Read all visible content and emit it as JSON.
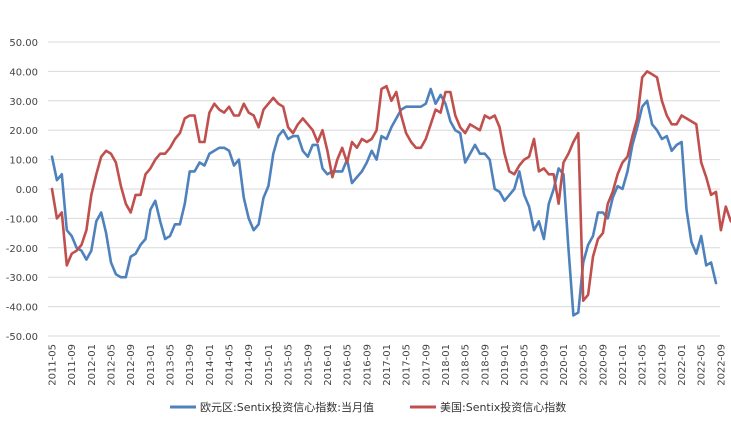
{
  "chart_data": {
    "type": "line",
    "title": "",
    "xlabel": "",
    "ylabel": "",
    "ylim": [
      -50,
      50
    ],
    "yticks": [
      "50.00",
      "40.00",
      "30.00",
      "20.00",
      "10.00",
      "0.00",
      "-10.00",
      "-20.00",
      "-30.00",
      "-40.00",
      "-50.00"
    ],
    "x_start": "2011-05",
    "x_end": "2022-09",
    "xtick_labels": [
      "2011-05",
      "2011-09",
      "2012-01",
      "2012-05",
      "2012-09",
      "2013-01",
      "2013-05",
      "2013-09",
      "2014-01",
      "2014-05",
      "2014-09",
      "2015-01",
      "2015-05",
      "2015-09",
      "2016-01",
      "2016-05",
      "2016-09",
      "2017-01",
      "2017-05",
      "2017-09",
      "2018-01",
      "2018-05",
      "2018-09",
      "2019-01",
      "2019-05",
      "2019-09",
      "2020-01",
      "2020-05",
      "2020-09",
      "2021-01",
      "2021-05",
      "2021-09",
      "2022-01",
      "2022-05",
      "2022-09"
    ],
    "grid": true,
    "legend_position": "bottom",
    "series": [
      {
        "name": "欧元区:Sentix投资信心指数:当月值",
        "color": "#4f81bd",
        "values": [
          11,
          3,
          5,
          -14,
          -16,
          -20,
          -21,
          -24,
          -21,
          -11,
          -8,
          -15,
          -25,
          -29,
          -30,
          -30,
          -23,
          -22,
          -19,
          -17,
          -7,
          -4,
          -11,
          -17,
          -16,
          -12,
          -12,
          -5,
          6,
          6,
          9,
          8,
          12,
          13,
          14,
          14,
          13,
          8,
          10,
          -3,
          -10,
          -14,
          -12,
          -3,
          1,
          12,
          18,
          20,
          17,
          18,
          18,
          13,
          11,
          15,
          15,
          7,
          5,
          6,
          6,
          6,
          10,
          2,
          4,
          6,
          9,
          13,
          10,
          18,
          17,
          21,
          24,
          27,
          28,
          28,
          28,
          28,
          29,
          34,
          29,
          32,
          29,
          23,
          20,
          19,
          9,
          12,
          15,
          12,
          12,
          10,
          0,
          -1,
          -4,
          -2,
          0,
          6,
          -2,
          -6,
          -14,
          -11,
          -17,
          -5,
          0,
          7,
          5,
          -20,
          -43,
          -42,
          -25,
          -19,
          -16,
          -8,
          -8,
          -10,
          -3,
          1,
          0,
          6,
          15,
          21,
          28,
          30,
          22,
          20,
          17,
          18,
          13,
          15,
          16,
          -7,
          -18,
          -22,
          -16,
          -26,
          -25,
          -32
        ]
      },
      {
        "name": "美国:Sentix投资信心指数",
        "color": "#c0504d",
        "values": [
          0,
          -10,
          -8,
          -26,
          -22,
          -21,
          -19,
          -14,
          -2,
          5,
          11,
          13,
          12,
          9,
          1,
          -5,
          -8,
          -2,
          -2,
          5,
          7,
          10,
          12,
          12,
          14,
          17,
          19,
          24,
          25,
          25,
          16,
          16,
          26,
          29,
          27,
          26,
          28,
          25,
          25,
          29,
          26,
          25,
          21,
          27,
          29,
          31,
          29,
          28,
          21,
          19,
          22,
          24,
          22,
          20,
          16,
          20,
          13,
          4,
          10,
          14,
          9,
          16,
          14,
          17,
          16,
          17,
          20,
          34,
          35,
          30,
          33,
          25,
          19,
          16,
          14,
          14,
          17,
          22,
          27,
          26,
          33,
          33,
          25,
          21,
          19,
          22,
          21,
          20,
          25,
          24,
          25,
          21,
          12,
          6,
          5,
          8,
          10,
          11,
          17,
          6,
          7,
          5,
          5,
          -5,
          9,
          12,
          16,
          19,
          -38,
          -36,
          -23,
          -17,
          -15,
          -5,
          -1,
          5,
          9,
          11,
          18,
          24,
          38,
          40,
          39,
          38,
          30,
          25,
          22,
          22,
          25,
          24,
          23,
          22,
          9,
          4,
          -2,
          -1,
          -14,
          -6,
          -11
        ]
      }
    ]
  }
}
